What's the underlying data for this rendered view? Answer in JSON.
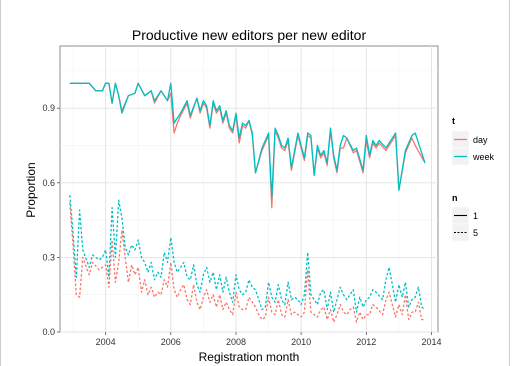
{
  "chart_data": {
    "type": "line",
    "title": "Productive new editors per new editor",
    "xlabel": "Registration month",
    "ylabel": "Proportion",
    "xlim": [
      2002.6,
      2014.2
    ],
    "ylim": [
      0.0,
      1.15
    ],
    "x_ticks": [
      2004,
      2006,
      2008,
      2010,
      2012,
      2014
    ],
    "x_tick_labels": [
      "2004",
      "2006",
      "2008",
      "2010",
      "2012",
      "2014"
    ],
    "y_ticks": [
      0.0,
      0.3,
      0.6,
      0.9
    ],
    "y_tick_labels": [
      "0.0",
      "0.3",
      "0.6",
      "0.9"
    ],
    "grid": true,
    "legend_position": "right",
    "legend_t": {
      "title": "t",
      "entries": [
        "day",
        "week"
      ]
    },
    "legend_n": {
      "title": "n",
      "entries": [
        "1",
        "5"
      ]
    },
    "colors": {
      "day": "#f8766d",
      "week": "#00bfc4"
    },
    "series": [
      {
        "name": "day",
        "n": "1",
        "color": "#f8766d",
        "dash": "solid",
        "x": [
          2002.9,
          2003.2,
          2003.5,
          2003.7,
          2003.9,
          2004.0,
          2004.1,
          2004.2,
          2004.3,
          2004.4,
          2004.5,
          2004.7,
          2004.9,
          2005.0,
          2005.2,
          2005.4,
          2005.5,
          2005.7,
          2005.9,
          2006.0,
          2006.1,
          2006.2,
          2006.3,
          2006.5,
          2006.6,
          2006.8,
          2006.9,
          2007.0,
          2007.1,
          2007.2,
          2007.3,
          2007.4,
          2007.5,
          2007.6,
          2007.7,
          2007.8,
          2007.9,
          2008.0,
          2008.1,
          2008.2,
          2008.3,
          2008.4,
          2008.5,
          2008.6,
          2008.8,
          2009.0,
          2009.1,
          2009.2,
          2009.3,
          2009.4,
          2009.5,
          2009.6,
          2009.7,
          2009.9,
          2010.0,
          2010.1,
          2010.2,
          2010.3,
          2010.4,
          2010.5,
          2010.6,
          2010.7,
          2010.8,
          2010.9,
          2011.0,
          2011.1,
          2011.2,
          2011.3,
          2011.4,
          2011.6,
          2011.7,
          2011.9,
          2012.0,
          2012.1,
          2012.2,
          2012.3,
          2012.4,
          2012.6,
          2012.9,
          2013.0,
          2013.2,
          2013.4,
          2013.5,
          2013.8
        ],
        "y": [
          1.0,
          1.0,
          1.0,
          0.97,
          0.97,
          1.0,
          1.0,
          0.92,
          1.0,
          0.95,
          0.89,
          0.95,
          0.96,
          1.0,
          0.95,
          0.97,
          0.92,
          0.97,
          0.93,
          0.96,
          0.8,
          0.84,
          0.87,
          0.92,
          0.86,
          0.94,
          0.88,
          0.92,
          0.9,
          0.82,
          0.92,
          0.88,
          0.9,
          0.84,
          0.88,
          0.82,
          0.8,
          0.87,
          0.76,
          0.83,
          0.82,
          0.85,
          0.79,
          0.64,
          0.73,
          0.79,
          0.5,
          0.81,
          0.78,
          0.74,
          0.73,
          0.77,
          0.65,
          0.79,
          0.74,
          0.69,
          0.79,
          0.78,
          0.63,
          0.74,
          0.7,
          0.72,
          0.67,
          0.81,
          0.7,
          0.64,
          0.74,
          0.74,
          0.78,
          0.72,
          0.73,
          0.64,
          0.77,
          0.7,
          0.76,
          0.74,
          0.76,
          0.73,
          0.79,
          0.57,
          0.72,
          0.78,
          0.75,
          0.68
        ]
      },
      {
        "name": "week",
        "n": "1",
        "color": "#00bfc4",
        "dash": "solid",
        "x": [
          2002.9,
          2003.2,
          2003.5,
          2003.7,
          2003.9,
          2004.0,
          2004.1,
          2004.2,
          2004.3,
          2004.4,
          2004.5,
          2004.7,
          2004.9,
          2005.0,
          2005.2,
          2005.4,
          2005.5,
          2005.7,
          2005.9,
          2006.0,
          2006.1,
          2006.2,
          2006.3,
          2006.5,
          2006.6,
          2006.8,
          2006.9,
          2007.0,
          2007.1,
          2007.2,
          2007.3,
          2007.4,
          2007.5,
          2007.6,
          2007.7,
          2007.8,
          2007.9,
          2008.0,
          2008.1,
          2008.2,
          2008.3,
          2008.4,
          2008.5,
          2008.6,
          2008.8,
          2009.0,
          2009.1,
          2009.2,
          2009.3,
          2009.4,
          2009.5,
          2009.6,
          2009.7,
          2009.9,
          2010.0,
          2010.1,
          2010.2,
          2010.3,
          2010.4,
          2010.5,
          2010.6,
          2010.7,
          2010.8,
          2010.9,
          2011.0,
          2011.1,
          2011.2,
          2011.3,
          2011.4,
          2011.6,
          2011.7,
          2011.9,
          2012.0,
          2012.1,
          2012.2,
          2012.3,
          2012.4,
          2012.6,
          2012.9,
          2013.0,
          2013.2,
          2013.4,
          2013.5,
          2013.8
        ],
        "y": [
          1.0,
          1.0,
          1.0,
          0.97,
          0.97,
          1.0,
          1.0,
          0.92,
          1.0,
          0.95,
          0.88,
          0.95,
          0.96,
          1.0,
          0.95,
          0.97,
          0.93,
          0.97,
          0.93,
          1.0,
          0.84,
          0.86,
          0.88,
          0.93,
          0.87,
          0.94,
          0.89,
          0.93,
          0.91,
          0.83,
          0.93,
          0.89,
          0.91,
          0.85,
          0.89,
          0.83,
          0.81,
          0.88,
          0.78,
          0.84,
          0.83,
          0.85,
          0.8,
          0.64,
          0.74,
          0.8,
          0.54,
          0.82,
          0.79,
          0.75,
          0.74,
          0.78,
          0.66,
          0.8,
          0.75,
          0.7,
          0.8,
          0.79,
          0.63,
          0.75,
          0.71,
          0.73,
          0.68,
          0.82,
          0.71,
          0.65,
          0.75,
          0.79,
          0.78,
          0.73,
          0.74,
          0.65,
          0.79,
          0.71,
          0.77,
          0.75,
          0.77,
          0.74,
          0.8,
          0.57,
          0.73,
          0.79,
          0.8,
          0.68
        ]
      },
      {
        "name": "day",
        "n": "5",
        "color": "#f8766d",
        "dash": "dashed",
        "x": [
          2002.9,
          2003.0,
          2003.1,
          2003.2,
          2003.3,
          2003.5,
          2003.6,
          2003.8,
          2003.9,
          2004.0,
          2004.1,
          2004.2,
          2004.3,
          2004.4,
          2004.5,
          2004.6,
          2004.7,
          2004.8,
          2004.9,
          2005.0,
          2005.1,
          2005.2,
          2005.3,
          2005.4,
          2005.5,
          2005.6,
          2005.7,
          2005.8,
          2005.9,
          2006.0,
          2006.1,
          2006.2,
          2006.3,
          2006.4,
          2006.5,
          2006.6,
          2006.7,
          2006.8,
          2006.9,
          2007.0,
          2007.1,
          2007.2,
          2007.3,
          2007.4,
          2007.5,
          2007.6,
          2007.7,
          2007.8,
          2007.9,
          2008.0,
          2008.1,
          2008.2,
          2008.3,
          2008.4,
          2008.5,
          2008.6,
          2008.7,
          2008.8,
          2008.9,
          2009.0,
          2009.1,
          2009.2,
          2009.3,
          2009.4,
          2009.5,
          2009.6,
          2009.7,
          2009.8,
          2009.9,
          2010.0,
          2010.1,
          2010.2,
          2010.3,
          2010.4,
          2010.5,
          2010.6,
          2010.7,
          2010.8,
          2010.9,
          2011.0,
          2011.1,
          2011.2,
          2011.3,
          2011.4,
          2011.5,
          2011.6,
          2011.7,
          2011.8,
          2011.9,
          2012.0,
          2012.1,
          2012.2,
          2012.3,
          2012.5,
          2012.6,
          2012.7,
          2012.9,
          2013.0,
          2013.1,
          2013.2,
          2013.3,
          2013.4,
          2013.5,
          2013.6,
          2013.7,
          2013.8
        ],
        "y": [
          0.52,
          0.35,
          0.15,
          0.14,
          0.3,
          0.23,
          0.28,
          0.25,
          0.26,
          0.27,
          0.18,
          0.37,
          0.2,
          0.28,
          0.41,
          0.3,
          0.2,
          0.27,
          0.23,
          0.26,
          0.16,
          0.21,
          0.15,
          0.18,
          0.14,
          0.16,
          0.15,
          0.21,
          0.18,
          0.28,
          0.17,
          0.14,
          0.17,
          0.19,
          0.13,
          0.11,
          0.19,
          0.12,
          0.09,
          0.14,
          0.17,
          0.12,
          0.15,
          0.1,
          0.15,
          0.09,
          0.12,
          0.09,
          0.07,
          0.16,
          0.1,
          0.09,
          0.09,
          0.14,
          0.12,
          0.1,
          0.07,
          0.05,
          0.06,
          0.14,
          0.08,
          0.07,
          0.13,
          0.07,
          0.06,
          0.13,
          0.07,
          0.08,
          0.07,
          0.06,
          0.08,
          0.25,
          0.08,
          0.07,
          0.06,
          0.09,
          0.1,
          0.05,
          0.09,
          0.04,
          0.07,
          0.11,
          0.08,
          0.07,
          0.09,
          0.1,
          0.04,
          0.08,
          0.05,
          0.07,
          0.07,
          0.11,
          0.1,
          0.07,
          0.13,
          0.16,
          0.06,
          0.11,
          0.07,
          0.15,
          0.05,
          0.08,
          0.08,
          0.12,
          0.05,
          0.05
        ]
      },
      {
        "name": "week",
        "n": "5",
        "color": "#00bfc4",
        "dash": "dashed",
        "x": [
          2002.9,
          2003.0,
          2003.1,
          2003.2,
          2003.3,
          2003.5,
          2003.6,
          2003.8,
          2003.9,
          2004.0,
          2004.1,
          2004.2,
          2004.3,
          2004.4,
          2004.5,
          2004.6,
          2004.7,
          2004.8,
          2004.9,
          2005.0,
          2005.1,
          2005.2,
          2005.3,
          2005.4,
          2005.5,
          2005.6,
          2005.7,
          2005.8,
          2005.9,
          2006.0,
          2006.1,
          2006.2,
          2006.3,
          2006.4,
          2006.5,
          2006.6,
          2006.7,
          2006.8,
          2006.9,
          2007.0,
          2007.1,
          2007.2,
          2007.3,
          2007.4,
          2007.5,
          2007.6,
          2007.7,
          2007.8,
          2007.9,
          2008.0,
          2008.1,
          2008.2,
          2008.3,
          2008.4,
          2008.5,
          2008.6,
          2008.7,
          2008.8,
          2008.9,
          2009.0,
          2009.1,
          2009.2,
          2009.3,
          2009.4,
          2009.5,
          2009.6,
          2009.7,
          2009.8,
          2009.9,
          2010.0,
          2010.1,
          2010.2,
          2010.3,
          2010.4,
          2010.5,
          2010.6,
          2010.7,
          2010.8,
          2010.9,
          2011.0,
          2011.1,
          2011.2,
          2011.3,
          2011.4,
          2011.5,
          2011.6,
          2011.7,
          2011.8,
          2011.9,
          2012.0,
          2012.1,
          2012.2,
          2012.3,
          2012.5,
          2012.6,
          2012.7,
          2012.9,
          2013.0,
          2013.1,
          2013.2,
          2013.3,
          2013.4,
          2013.5,
          2013.6,
          2013.7,
          2013.8
        ],
        "y": [
          0.55,
          0.4,
          0.22,
          0.49,
          0.33,
          0.26,
          0.31,
          0.29,
          0.3,
          0.33,
          0.22,
          0.5,
          0.3,
          0.53,
          0.46,
          0.34,
          0.31,
          0.35,
          0.33,
          0.37,
          0.3,
          0.28,
          0.24,
          0.28,
          0.21,
          0.24,
          0.22,
          0.32,
          0.28,
          0.38,
          0.28,
          0.24,
          0.26,
          0.28,
          0.22,
          0.21,
          0.27,
          0.19,
          0.16,
          0.23,
          0.26,
          0.2,
          0.24,
          0.17,
          0.23,
          0.16,
          0.22,
          0.16,
          0.12,
          0.23,
          0.17,
          0.15,
          0.16,
          0.21,
          0.18,
          0.17,
          0.13,
          0.09,
          0.1,
          0.2,
          0.14,
          0.12,
          0.19,
          0.13,
          0.11,
          0.2,
          0.13,
          0.14,
          0.13,
          0.11,
          0.15,
          0.32,
          0.15,
          0.13,
          0.11,
          0.16,
          0.17,
          0.09,
          0.16,
          0.08,
          0.13,
          0.18,
          0.15,
          0.13,
          0.15,
          0.17,
          0.08,
          0.14,
          0.1,
          0.13,
          0.14,
          0.17,
          0.16,
          0.13,
          0.21,
          0.26,
          0.12,
          0.19,
          0.14,
          0.2,
          0.1,
          0.13,
          0.14,
          0.18,
          0.1,
          0.09
        ]
      }
    ]
  }
}
